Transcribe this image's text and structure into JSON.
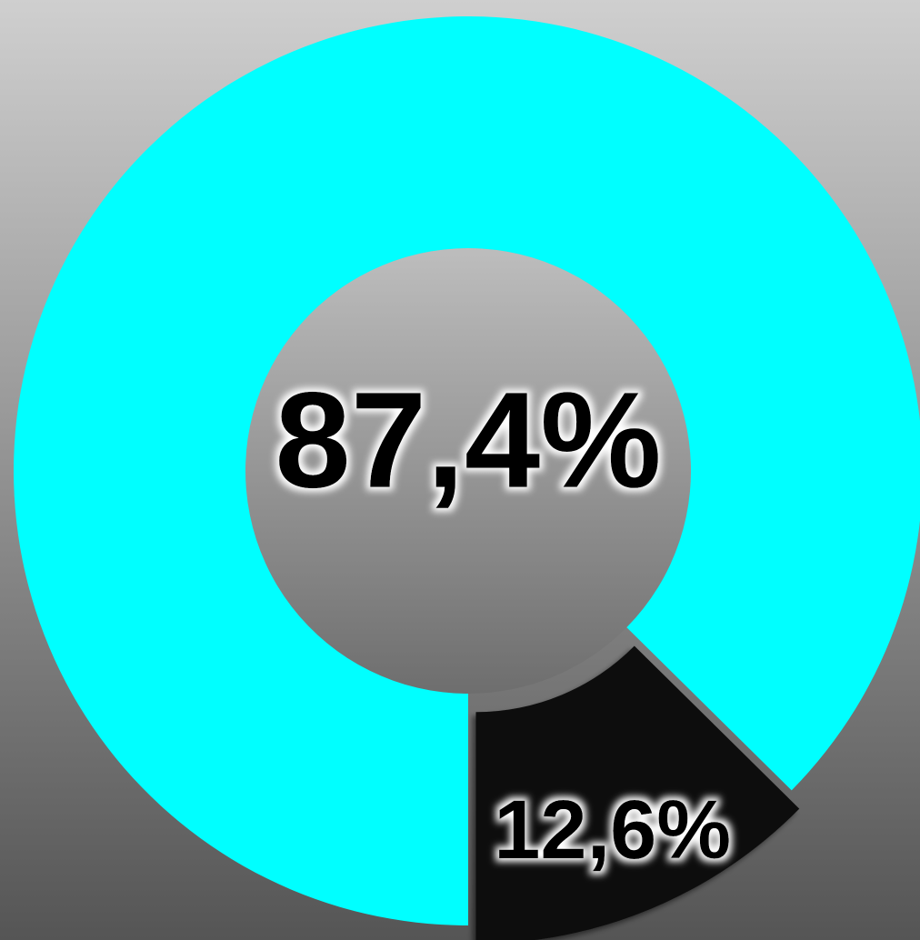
{
  "chart_data": {
    "type": "donut",
    "categories": [
      null,
      null
    ],
    "values": [
      87.4,
      12.6
    ],
    "value_labels": [
      "87,4%",
      "12,6%"
    ],
    "colors": [
      "#00ffff",
      "#111111"
    ]
  }
}
